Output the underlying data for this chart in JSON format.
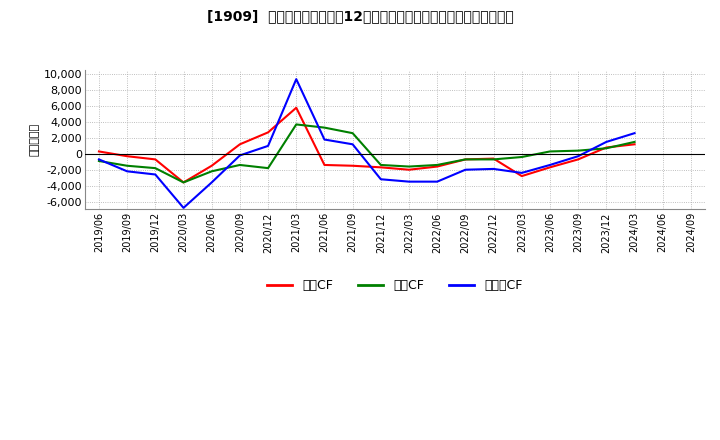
{
  "title": "[1909]  キャッシュフローの12か月移動合計の対前年同期増減額の推移",
  "ylabel": "（百万円）",
  "background_color": "#ffffff",
  "ylim": [
    -7000,
    10500
  ],
  "yticks": [
    -6000,
    -4000,
    -2000,
    0,
    2000,
    4000,
    6000,
    8000,
    10000
  ],
  "dates": [
    "2019/06",
    "2019/09",
    "2019/12",
    "2020/03",
    "2020/06",
    "2020/09",
    "2020/12",
    "2021/03",
    "2021/06",
    "2021/09",
    "2021/12",
    "2022/03",
    "2022/06",
    "2022/09",
    "2022/12",
    "2023/03",
    "2023/06",
    "2023/09",
    "2023/12",
    "2024/03",
    "2024/06",
    "2024/09"
  ],
  "eigyo_cf": [
    300,
    -300,
    -700,
    -3600,
    -1500,
    1200,
    2700,
    5800,
    -1400,
    -1500,
    -1700,
    -2000,
    -1600,
    -700,
    -600,
    -2800,
    -1700,
    -700,
    800,
    1200,
    null,
    null
  ],
  "toshi_cf": [
    -900,
    -1500,
    -1800,
    -3600,
    -2200,
    -1400,
    -1800,
    3700,
    3300,
    2600,
    -1400,
    -1600,
    -1400,
    -700,
    -700,
    -400,
    300,
    400,
    700,
    1500,
    null,
    null
  ],
  "free_cf": [
    -700,
    -2200,
    -2600,
    -6800,
    -3600,
    -200,
    1000,
    9400,
    1800,
    1200,
    -3200,
    -3500,
    -3500,
    -2000,
    -1900,
    -2400,
    -1400,
    -300,
    1500,
    2600,
    null,
    null
  ],
  "eigyo_color": "#ff0000",
  "toshi_color": "#008000",
  "free_color": "#0000ff",
  "legend_labels": [
    "営業CF",
    "投資CF",
    "フリーCF"
  ]
}
